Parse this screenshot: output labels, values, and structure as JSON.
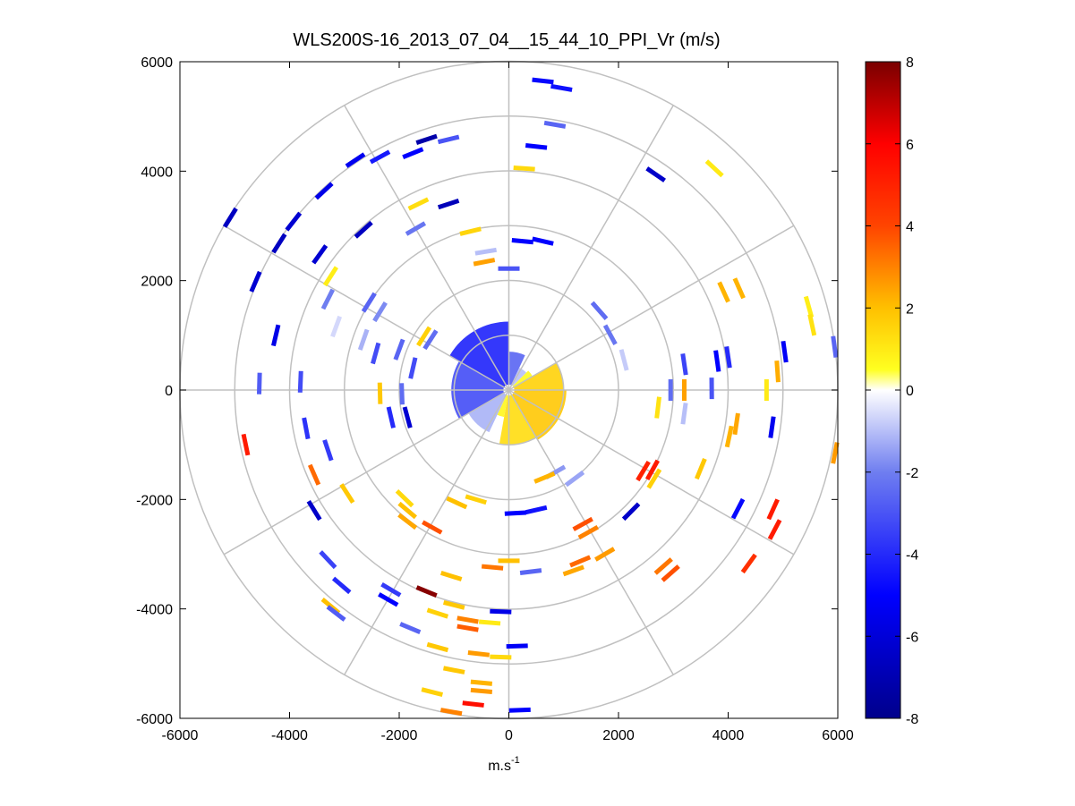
{
  "chart_data": {
    "type": "scatter",
    "subtype": "polar-ppi",
    "title": "WLS200S-16_2013_07_04__15_44_10_PPI_Vr (m/s)",
    "xlabel": "m.s-1",
    "xlabel_base": "m.s",
    "xlabel_sup": "-1",
    "ylabel": "",
    "xlim": [
      -6000,
      6000
    ],
    "ylim": [
      -6000,
      6000
    ],
    "xticks": [
      -6000,
      -4000,
      -2000,
      0,
      2000,
      4000,
      6000
    ],
    "yticks": [
      6000,
      4000,
      2000,
      0,
      -2000,
      -4000,
      -6000
    ],
    "xtick_labels": [
      "-6000",
      "-4000",
      "-2000",
      "0",
      "2000",
      "4000",
      "6000"
    ],
    "ytick_labels": [
      "6000",
      "4000",
      "2000",
      "0",
      "-2000",
      "-4000",
      "-6000"
    ],
    "polar_grid": {
      "rings": [
        1000,
        2000,
        3000,
        4000,
        5000,
        6000
      ],
      "spokes_deg": [
        0,
        30,
        60,
        90,
        120,
        150,
        180,
        210,
        240,
        270,
        300,
        330
      ]
    },
    "colorbar": {
      "colormap": "blue-white-yellow-red",
      "clim": [
        -8,
        8
      ],
      "ticks": [
        8,
        6,
        4,
        2,
        0,
        -2,
        -4,
        -6,
        -8
      ],
      "tick_labels": [
        "8",
        "6",
        "4",
        "2",
        "0",
        "-2",
        "-4",
        "-6",
        "-8"
      ],
      "stops": [
        {
          "v": -8,
          "color": "#00008b"
        },
        {
          "v": -5,
          "color": "#0000ff"
        },
        {
          "v": -2,
          "color": "#6f7ef0"
        },
        {
          "v": 0,
          "color": "#ffffff"
        },
        {
          "v": 0.5,
          "color": "#ffff20"
        },
        {
          "v": 2,
          "color": "#ffc000"
        },
        {
          "v": 4,
          "color": "#ff4400"
        },
        {
          "v": 6,
          "color": "#ff0000"
        },
        {
          "v": 8,
          "color": "#7a0000"
        }
      ]
    },
    "near_field_sectors": [
      {
        "r0": 100,
        "r1": 1250,
        "a0": 90,
        "a1": 150,
        "v": -4.2
      },
      {
        "r0": 100,
        "r1": 1050,
        "a0": 150,
        "a1": 210,
        "v": -3.2
      },
      {
        "r0": 100,
        "r1": 850,
        "a0": 210,
        "a1": 245,
        "v": -1.2
      },
      {
        "r0": 100,
        "r1": 700,
        "a0": 65,
        "a1": 90,
        "v": -2.6
      },
      {
        "r0": 100,
        "r1": 450,
        "a0": 45,
        "a1": 65,
        "v": -1.0
      },
      {
        "r0": 100,
        "r1": 1000,
        "a0": 260,
        "a1": 300,
        "v": 1.3
      },
      {
        "r0": 100,
        "r1": 1050,
        "a0": 300,
        "a1": 360,
        "v": 1.8
      },
      {
        "r0": 100,
        "r1": 1000,
        "a0": 0,
        "a1": 30,
        "v": 1.6
      },
      {
        "r0": 100,
        "r1": 500,
        "a0": 30,
        "a1": 45,
        "v": 0.6
      },
      {
        "r0": 100,
        "r1": 500,
        "a0": 245,
        "a1": 260,
        "v": 0.7
      }
    ],
    "segments": [
      {
        "x": 620,
        "y": 5650,
        "v": -4.8
      },
      {
        "x": 960,
        "y": 5520,
        "v": -4.6
      },
      {
        "x": 500,
        "y": 4450,
        "v": -5.0
      },
      {
        "x": 840,
        "y": 4850,
        "v": -2.6
      },
      {
        "x": -1100,
        "y": 4580,
        "v": -3.0
      },
      {
        "x": 280,
        "y": 4050,
        "v": 1.4
      },
      {
        "x": 3750,
        "y": 4050,
        "v": 1.0
      },
      {
        "x": 2680,
        "y": 3940,
        "v": -6.4
      },
      {
        "x": -1750,
        "y": 4330,
        "v": -5.0
      },
      {
        "x": -1500,
        "y": 4580,
        "v": -7.2
      },
      {
        "x": -2350,
        "y": 4260,
        "v": -4.4
      },
      {
        "x": -2800,
        "y": 4200,
        "v": -5.4
      },
      {
        "x": -3370,
        "y": 3640,
        "v": -5.6
      },
      {
        "x": -5080,
        "y": 3150,
        "v": -6.6
      },
      {
        "x": -3930,
        "y": 3080,
        "v": -6.2
      },
      {
        "x": -4190,
        "y": 2680,
        "v": -6.6
      },
      {
        "x": -3450,
        "y": 2480,
        "v": -6.2
      },
      {
        "x": -2650,
        "y": 2930,
        "v": -6.6
      },
      {
        "x": -1100,
        "y": 3400,
        "v": -6.8
      },
      {
        "x": -1650,
        "y": 3400,
        "v": 1.3
      },
      {
        "x": -1700,
        "y": 2950,
        "v": -2.2
      },
      {
        "x": -700,
        "y": 2900,
        "v": 1.5
      },
      {
        "x": 250,
        "y": 2720,
        "v": -5.0
      },
      {
        "x": 620,
        "y": 2720,
        "v": -5.0
      },
      {
        "x": -420,
        "y": 2530,
        "v": -1.0
      },
      {
        "x": -450,
        "y": 2340,
        "v": 2.5
      },
      {
        "x": 0,
        "y": 2220,
        "v": -3.0
      },
      {
        "x": -4620,
        "y": 1980,
        "v": -6.2
      },
      {
        "x": -3250,
        "y": 2080,
        "v": 0.9
      },
      {
        "x": -2550,
        "y": 1600,
        "v": -2.6
      },
      {
        "x": -2350,
        "y": 1430,
        "v": -1.8
      },
      {
        "x": -3300,
        "y": 1660,
        "v": -2.0
      },
      {
        "x": -4250,
        "y": 1000,
        "v": -5.6
      },
      {
        "x": -3150,
        "y": 1160,
        "v": -0.6
      },
      {
        "x": -2650,
        "y": 920,
        "v": -1.2
      },
      {
        "x": -2430,
        "y": 670,
        "v": -3.2
      },
      {
        "x": -2000,
        "y": 740,
        "v": -2.6
      },
      {
        "x": -1430,
        "y": 920,
        "v": -2.4
      },
      {
        "x": -1550,
        "y": 980,
        "v": 1.6
      },
      {
        "x": 1650,
        "y": 1450,
        "v": -2.4
      },
      {
        "x": 1850,
        "y": 1010,
        "v": -2.2
      },
      {
        "x": 2100,
        "y": 550,
        "v": -0.8
      },
      {
        "x": 3920,
        "y": 1790,
        "v": 2.2
      },
      {
        "x": 4200,
        "y": 1860,
        "v": 2.2
      },
      {
        "x": 5470,
        "y": 1520,
        "v": 0.9
      },
      {
        "x": 5530,
        "y": 1190,
        "v": 1.2
      },
      {
        "x": 5030,
        "y": 700,
        "v": -5.2
      },
      {
        "x": 5940,
        "y": 790,
        "v": -2.6
      },
      {
        "x": 4000,
        "y": 600,
        "v": -4.0
      },
      {
        "x": 3800,
        "y": 530,
        "v": -5.0
      },
      {
        "x": 3200,
        "y": 470,
        "v": -3.4
      },
      {
        "x": 4900,
        "y": 340,
        "v": 2.3
      },
      {
        "x": 4700,
        "y": 0,
        "v": 1.0
      },
      {
        "x": 2950,
        "y": 0,
        "v": -2.4
      },
      {
        "x": 3200,
        "y": 0,
        "v": 2.5
      },
      {
        "x": 3700,
        "y": 30,
        "v": -3.0
      },
      {
        "x": 2720,
        "y": -320,
        "v": 1.2
      },
      {
        "x": 3200,
        "y": -430,
        "v": -1.0
      },
      {
        "x": 4150,
        "y": -620,
        "v": 2.4
      },
      {
        "x": 4020,
        "y": -850,
        "v": 2.2
      },
      {
        "x": 4800,
        "y": -680,
        "v": -5.4
      },
      {
        "x": 5950,
        "y": -1150,
        "v": 2.6
      },
      {
        "x": 3500,
        "y": -1440,
        "v": 1.8
      },
      {
        "x": 2450,
        "y": -1480,
        "v": 5.0
      },
      {
        "x": 2620,
        "y": -1460,
        "v": 5.2
      },
      {
        "x": 2650,
        "y": -1620,
        "v": 1.6
      },
      {
        "x": 2230,
        "y": -2220,
        "v": -6.4
      },
      {
        "x": 4180,
        "y": -2170,
        "v": -4.8
      },
      {
        "x": 4820,
        "y": -2180,
        "v": 5.2
      },
      {
        "x": 4850,
        "y": -2550,
        "v": 5.2
      },
      {
        "x": 4380,
        "y": -3170,
        "v": 4.6
      },
      {
        "x": 2820,
        "y": -3220,
        "v": 3.2
      },
      {
        "x": 2950,
        "y": -3350,
        "v": 3.8
      },
      {
        "x": 1750,
        "y": -3000,
        "v": 2.6
      },
      {
        "x": 1300,
        "y": -3130,
        "v": 3.4
      },
      {
        "x": 1180,
        "y": -3300,
        "v": 2.4
      },
      {
        "x": 1450,
        "y": -2600,
        "v": 3.0
      },
      {
        "x": 1350,
        "y": -2450,
        "v": 3.8
      },
      {
        "x": 500,
        "y": -2190,
        "v": -4.6
      },
      {
        "x": 120,
        "y": -2250,
        "v": -5.0
      },
      {
        "x": 850,
        "y": -1500,
        "v": -1.6
      },
      {
        "x": 1200,
        "y": -1620,
        "v": -1.4
      },
      {
        "x": 650,
        "y": -1600,
        "v": 2.2
      },
      {
        "x": 0,
        "y": -3120,
        "v": 2.0
      },
      {
        "x": 400,
        "y": -3320,
        "v": -2.6
      },
      {
        "x": -300,
        "y": -3240,
        "v": 3.2
      },
      {
        "x": -600,
        "y": -2000,
        "v": 1.6
      },
      {
        "x": -950,
        "y": -2060,
        "v": 2.0
      },
      {
        "x": -1400,
        "y": -2510,
        "v": 3.8
      },
      {
        "x": -1850,
        "y": -2200,
        "v": 2.0
      },
      {
        "x": -1850,
        "y": -2400,
        "v": 2.4
      },
      {
        "x": -1900,
        "y": -1980,
        "v": 1.4
      },
      {
        "x": -2950,
        "y": -1890,
        "v": 1.8
      },
      {
        "x": -3550,
        "y": -1550,
        "v": 3.4
      },
      {
        "x": -3550,
        "y": -2200,
        "v": -6.4
      },
      {
        "x": -3300,
        "y": -1100,
        "v": -3.6
      },
      {
        "x": -3700,
        "y": -700,
        "v": -3.8
      },
      {
        "x": -4800,
        "y": -1000,
        "v": 5.2
      },
      {
        "x": -1050,
        "y": -3400,
        "v": 2.0
      },
      {
        "x": -1500,
        "y": -3680,
        "v": 7.8
      },
      {
        "x": -1000,
        "y": -3930,
        "v": 1.8
      },
      {
        "x": -2150,
        "y": -3650,
        "v": -3.6
      },
      {
        "x": -2200,
        "y": -3830,
        "v": -5.0
      },
      {
        "x": -3050,
        "y": -3570,
        "v": -4.0
      },
      {
        "x": -3250,
        "y": -3950,
        "v": 2.0
      },
      {
        "x": -3150,
        "y": -4080,
        "v": -2.8
      },
      {
        "x": -3300,
        "y": -3100,
        "v": -3.4
      },
      {
        "x": -1800,
        "y": -4350,
        "v": -2.6
      },
      {
        "x": -1300,
        "y": -4080,
        "v": 1.6
      },
      {
        "x": -750,
        "y": -4200,
        "v": 3.0
      },
      {
        "x": -750,
        "y": -4350,
        "v": 3.6
      },
      {
        "x": -350,
        "y": -4250,
        "v": 1.0
      },
      {
        "x": -150,
        "y": -4050,
        "v": -5.6
      },
      {
        "x": -1300,
        "y": -4700,
        "v": 1.8
      },
      {
        "x": -550,
        "y": -4820,
        "v": 2.6
      },
      {
        "x": -150,
        "y": -4880,
        "v": 1.4
      },
      {
        "x": 150,
        "y": -4680,
        "v": -5.2
      },
      {
        "x": -1000,
        "y": -5120,
        "v": 1.8
      },
      {
        "x": -500,
        "y": -5350,
        "v": 2.2
      },
      {
        "x": -500,
        "y": -5500,
        "v": 2.6
      },
      {
        "x": -1400,
        "y": -5520,
        "v": 1.6
      },
      {
        "x": -650,
        "y": -5740,
        "v": 5.6
      },
      {
        "x": -1050,
        "y": -5880,
        "v": 3.0
      },
      {
        "x": 200,
        "y": -5850,
        "v": -5.0
      },
      {
        "x": -4550,
        "y": 120,
        "v": -2.8
      },
      {
        "x": -3800,
        "y": 150,
        "v": -3.2
      },
      {
        "x": -2350,
        "y": -60,
        "v": 1.8
      },
      {
        "x": -1950,
        "y": -70,
        "v": -2.4
      },
      {
        "x": -2150,
        "y": -500,
        "v": -4.0
      },
      {
        "x": -1850,
        "y": -500,
        "v": -6.2
      },
      {
        "x": -1750,
        "y": 400,
        "v": -3.2
      }
    ]
  }
}
